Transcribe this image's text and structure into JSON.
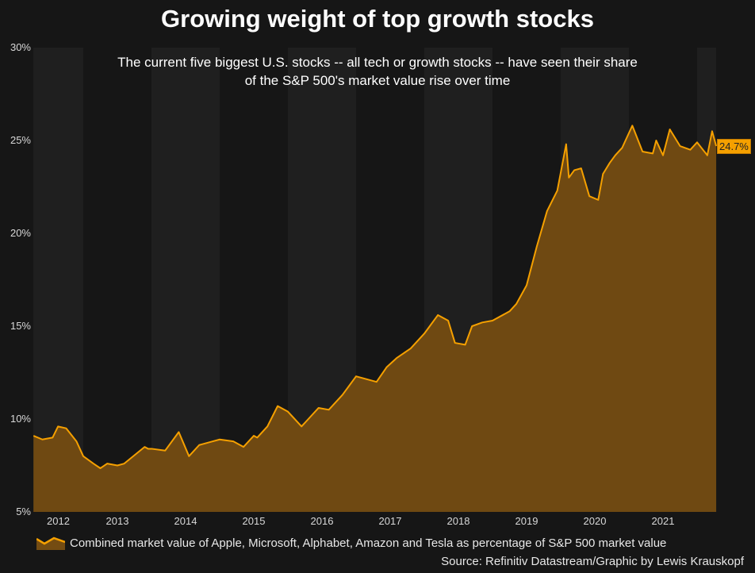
{
  "chart_data": {
    "type": "area",
    "title": "Growing weight of top growth stocks",
    "subtitle_lines": [
      "The current five biggest U.S. stocks -- all tech or growth stocks -- have seen their share",
      "of the S&P 500's market value rise over time"
    ],
    "ylim": [
      5,
      30
    ],
    "yticks": [
      "5%",
      "10%",
      "15%",
      "20%",
      "25%",
      "30%"
    ],
    "ytick_values": [
      5,
      10,
      15,
      20,
      25,
      30
    ],
    "xticks": [
      "2012",
      "2013",
      "2014",
      "2015",
      "2016",
      "2017",
      "2018",
      "2019",
      "2020",
      "2021"
    ],
    "xlim": [
      2012.27,
      2022.28
    ],
    "series": [
      {
        "name": "Combined market value of Apple, Microsoft, Alphabet, Amazon and Tesla as percentage of S&P 500 market value",
        "x": [
          2012.27,
          2012.4,
          2012.55,
          2012.63,
          2012.75,
          2012.9,
          2013.0,
          2013.15,
          2013.25,
          2013.35,
          2013.5,
          2013.6,
          2013.8,
          2013.9,
          2013.95,
          2014.0,
          2014.2,
          2014.4,
          2014.55,
          2014.7,
          2014.9,
          2015.0,
          2015.2,
          2015.35,
          2015.5,
          2015.55,
          2015.7,
          2015.85,
          2016.0,
          2016.2,
          2016.3,
          2016.45,
          2016.6,
          2016.8,
          2017.0,
          2017.3,
          2017.45,
          2017.6,
          2017.8,
          2018.0,
          2018.2,
          2018.35,
          2018.45,
          2018.6,
          2018.7,
          2018.85,
          2019.0,
          2019.25,
          2019.35,
          2019.5,
          2019.65,
          2019.8,
          2019.95,
          2020.08,
          2020.12,
          2020.2,
          2020.3,
          2020.42,
          2020.55,
          2020.62,
          2020.72,
          2020.8,
          2020.9,
          2021.05,
          2021.2,
          2021.35,
          2021.4,
          2021.5,
          2021.6,
          2021.75,
          2021.9,
          2022.0,
          2022.15,
          2022.22,
          2022.28
        ],
        "values": [
          9.1,
          8.9,
          9.0,
          9.6,
          9.5,
          8.8,
          8.0,
          7.6,
          7.35,
          7.6,
          7.5,
          7.6,
          8.2,
          8.5,
          8.4,
          8.4,
          8.3,
          9.3,
          8.0,
          8.6,
          8.8,
          8.9,
          8.8,
          8.5,
          9.1,
          9.0,
          9.6,
          10.7,
          10.4,
          9.6,
          10.0,
          10.6,
          10.5,
          11.3,
          12.3,
          12.0,
          12.8,
          13.3,
          13.8,
          14.6,
          15.6,
          15.3,
          14.1,
          14.0,
          15.0,
          15.2,
          15.3,
          15.8,
          16.2,
          17.2,
          19.3,
          21.2,
          22.3,
          24.8,
          23.0,
          23.4,
          23.5,
          22.0,
          21.8,
          23.2,
          23.8,
          24.2,
          24.6,
          25.8,
          24.4,
          24.3,
          25.0,
          24.2,
          25.6,
          24.7,
          24.5,
          24.9,
          24.2,
          25.5,
          24.7
        ]
      }
    ],
    "end_label": "24.7%",
    "legend_position": "bottom-left",
    "colors": {
      "line": "#f5a000",
      "fill": "#744c12",
      "band": "#1f1f1f",
      "background": "#161616"
    }
  },
  "source": "Source: Refinitiv Datastream/Graphic by Lewis Krauskopf"
}
